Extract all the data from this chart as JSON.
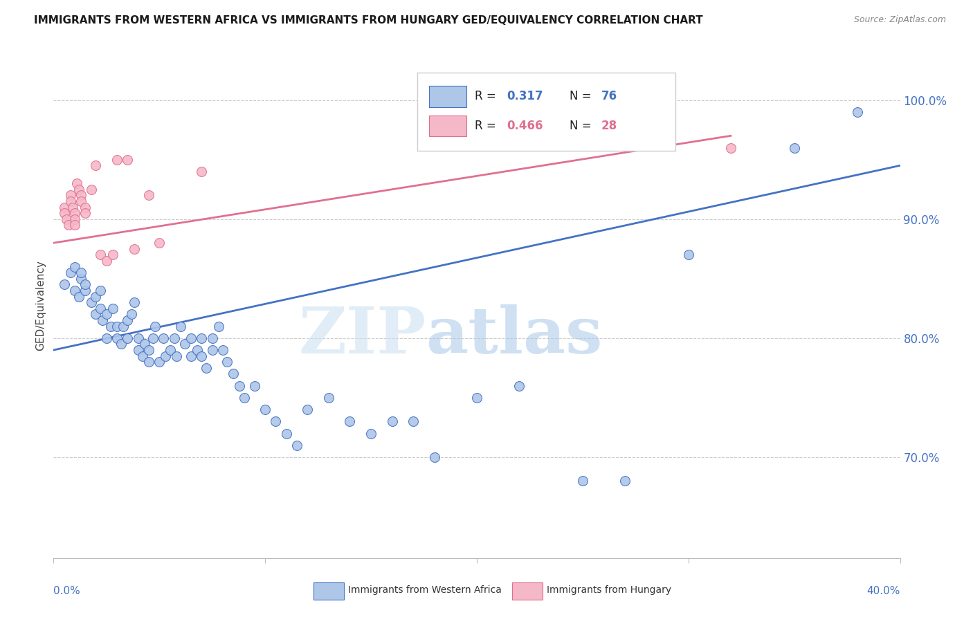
{
  "title": "IMMIGRANTS FROM WESTERN AFRICA VS IMMIGRANTS FROM HUNGARY GED/EQUIVALENCY CORRELATION CHART",
  "source": "Source: ZipAtlas.com",
  "ylabel": "GED/Equivalency",
  "ytick_values": [
    0.7,
    0.8,
    0.9,
    1.0
  ],
  "xlim": [
    0.0,
    0.4
  ],
  "ylim": [
    0.615,
    1.04
  ],
  "legend_r1_val": "0.317",
  "legend_n1_val": "76",
  "legend_r2_val": "0.466",
  "legend_n2_val": "28",
  "blue_color": "#aec6e8",
  "pink_color": "#f5b8c8",
  "line_blue": "#4472c4",
  "line_pink": "#e07090",
  "watermark_zip": "ZIP",
  "watermark_atlas": "atlas",
  "scatter_blue_x": [
    0.005,
    0.008,
    0.01,
    0.01,
    0.012,
    0.013,
    0.013,
    0.015,
    0.015,
    0.018,
    0.02,
    0.02,
    0.022,
    0.022,
    0.023,
    0.025,
    0.025,
    0.027,
    0.028,
    0.03,
    0.03,
    0.032,
    0.033,
    0.035,
    0.035,
    0.037,
    0.038,
    0.04,
    0.04,
    0.042,
    0.043,
    0.045,
    0.045,
    0.047,
    0.048,
    0.05,
    0.052,
    0.053,
    0.055,
    0.057,
    0.058,
    0.06,
    0.062,
    0.065,
    0.065,
    0.068,
    0.07,
    0.07,
    0.072,
    0.075,
    0.075,
    0.078,
    0.08,
    0.082,
    0.085,
    0.088,
    0.09,
    0.095,
    0.1,
    0.105,
    0.11,
    0.115,
    0.12,
    0.13,
    0.14,
    0.15,
    0.16,
    0.17,
    0.18,
    0.2,
    0.22,
    0.25,
    0.27,
    0.3,
    0.35,
    0.38
  ],
  "scatter_blue_y": [
    0.845,
    0.855,
    0.84,
    0.86,
    0.835,
    0.85,
    0.855,
    0.84,
    0.845,
    0.83,
    0.82,
    0.835,
    0.825,
    0.84,
    0.815,
    0.8,
    0.82,
    0.81,
    0.825,
    0.81,
    0.8,
    0.795,
    0.81,
    0.8,
    0.815,
    0.82,
    0.83,
    0.79,
    0.8,
    0.785,
    0.795,
    0.78,
    0.79,
    0.8,
    0.81,
    0.78,
    0.8,
    0.785,
    0.79,
    0.8,
    0.785,
    0.81,
    0.795,
    0.8,
    0.785,
    0.79,
    0.8,
    0.785,
    0.775,
    0.79,
    0.8,
    0.81,
    0.79,
    0.78,
    0.77,
    0.76,
    0.75,
    0.76,
    0.74,
    0.73,
    0.72,
    0.71,
    0.74,
    0.75,
    0.73,
    0.72,
    0.73,
    0.73,
    0.7,
    0.75,
    0.76,
    0.68,
    0.68,
    0.87,
    0.96,
    0.99
  ],
  "scatter_pink_x": [
    0.005,
    0.005,
    0.006,
    0.007,
    0.008,
    0.008,
    0.009,
    0.01,
    0.01,
    0.01,
    0.011,
    0.012,
    0.013,
    0.013,
    0.015,
    0.015,
    0.018,
    0.02,
    0.022,
    0.025,
    0.028,
    0.03,
    0.035,
    0.038,
    0.045,
    0.05,
    0.07,
    0.32
  ],
  "scatter_pink_y": [
    0.91,
    0.905,
    0.9,
    0.895,
    0.92,
    0.915,
    0.91,
    0.905,
    0.9,
    0.895,
    0.93,
    0.925,
    0.92,
    0.915,
    0.91,
    0.905,
    0.925,
    0.945,
    0.87,
    0.865,
    0.87,
    0.95,
    0.95,
    0.875,
    0.92,
    0.88,
    0.94,
    0.96
  ],
  "blue_line_x": [
    0.0,
    0.4
  ],
  "blue_line_y": [
    0.79,
    0.945
  ],
  "pink_line_x": [
    0.0,
    0.32
  ],
  "pink_line_y": [
    0.88,
    0.97
  ]
}
